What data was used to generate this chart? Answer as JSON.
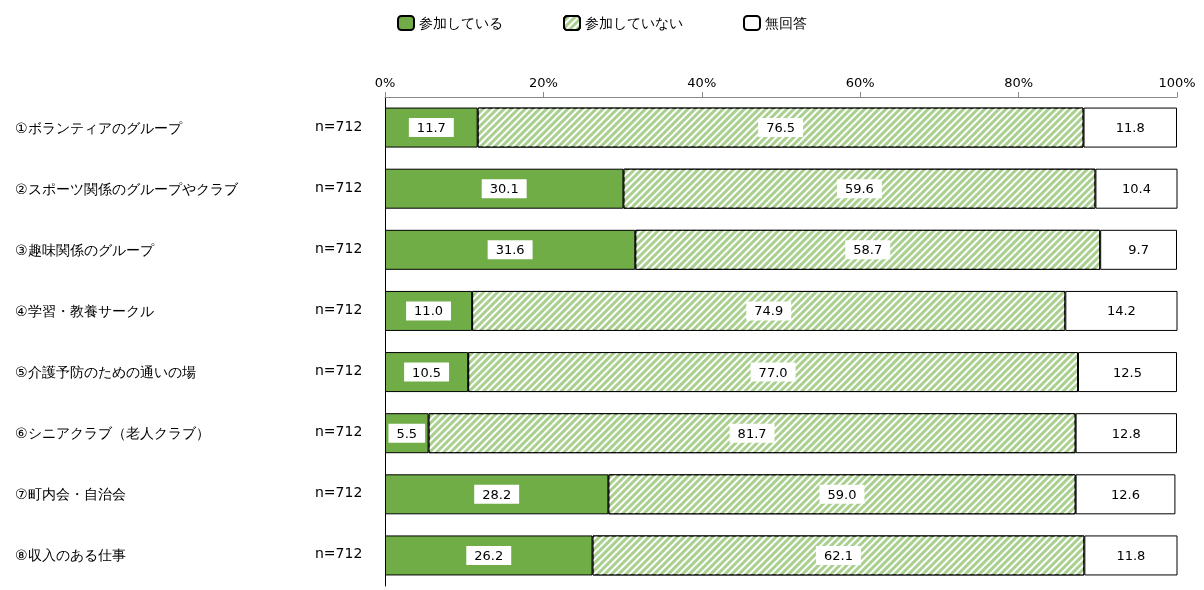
{
  "chart_data": {
    "type": "bar",
    "orientation": "horizontal",
    "stacked": true,
    "legend": "top",
    "grid": false,
    "categories": [
      "①ボランティアのグループ",
      "②スポーツ関係のグループやクラブ",
      "③趣味関係のグループ",
      "④学習・教養サークル",
      "⑤介護予防のための通いの場",
      "⑥シニアクラブ（老人クラブ）",
      "⑦町内会・自治会",
      "⑧収入のある仕事"
    ],
    "annotations": [
      "n=712",
      "n=712",
      "n=712",
      "n=712",
      "n=712",
      "n=712",
      "n=712",
      "n=712"
    ],
    "xlim": [
      0,
      100
    ],
    "xticks": [
      {
        "value": 0,
        "label": "0%"
      },
      {
        "value": 20,
        "label": "20%"
      },
      {
        "value": 40,
        "label": "40%"
      },
      {
        "value": 60,
        "label": "60%"
      },
      {
        "value": 80,
        "label": "80%"
      },
      {
        "value": 100,
        "label": "100%"
      }
    ],
    "series": [
      {
        "name": "参加している",
        "color": "#70ad47",
        "values": [
          11.7,
          30.1,
          31.6,
          11.0,
          10.5,
          5.5,
          28.2,
          26.2
        ],
        "value_labels": [
          "11.7",
          "30.1",
          "31.6",
          "11.0",
          "10.5",
          "5.5",
          "28.2",
          "26.2"
        ]
      },
      {
        "name": "参加していない",
        "color": "#a9d08e",
        "values": [
          76.5,
          59.6,
          58.7,
          74.9,
          77.0,
          81.7,
          59.0,
          62.1
        ],
        "value_labels": [
          "76.5",
          "59.6",
          "58.7",
          "74.9",
          "77.0",
          "81.7",
          "59.0",
          "62.1"
        ]
      },
      {
        "name": "無回答",
        "color": "#ffffff",
        "values": [
          11.8,
          10.4,
          9.7,
          14.2,
          12.5,
          12.8,
          12.6,
          11.8
        ],
        "value_labels": [
          "11.8",
          "10.4",
          "9.7",
          "14.2",
          "12.5",
          "12.8",
          "12.6",
          "11.8"
        ]
      }
    ]
  }
}
